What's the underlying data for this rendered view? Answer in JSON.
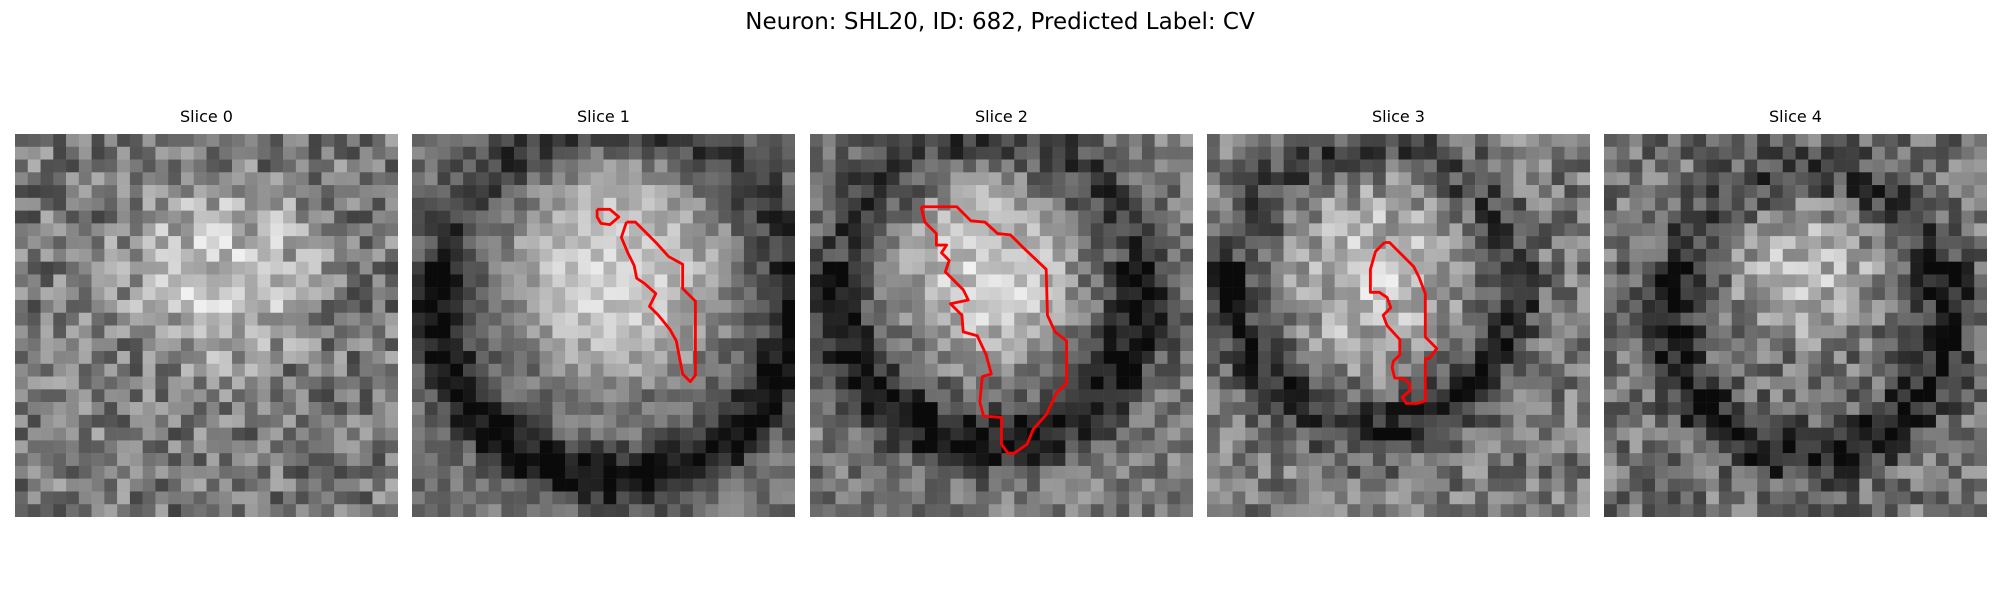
{
  "figure": {
    "title": "Neuron: SHL20, ID: 682, Predicted Label: CV"
  },
  "panels": [
    {
      "title": "Slice 0",
      "has_contour": false
    },
    {
      "title": "Slice 1",
      "has_contour": true
    },
    {
      "title": "Slice 2",
      "has_contour": true
    },
    {
      "title": "Slice 3",
      "has_contour": true
    },
    {
      "title": "Slice 4",
      "has_contour": false
    }
  ],
  "contour_color": "#ff0000"
}
